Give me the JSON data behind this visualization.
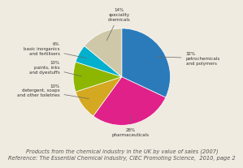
{
  "slices": [
    {
      "label": "32%\npetrochemicals\nand polymers",
      "pct": 32,
      "color": "#2b7bba"
    },
    {
      "label": "28%\npharmaceuticals",
      "pct": 28,
      "color": "#e0218a"
    },
    {
      "label": "10%\ndetergent, soaps\nand other toiletries",
      "pct": 10,
      "color": "#d4a820"
    },
    {
      "label": "10%\npaints, inks\nand dyestuffs",
      "pct": 10,
      "color": "#8db600"
    },
    {
      "label": "6%\nbasic inorganics\nand fertilisers",
      "pct": 6,
      "color": "#00b0cc"
    },
    {
      "label": "14%\nspeciality\nchemicals",
      "pct": 14,
      "color": "#cfc8a8"
    }
  ],
  "title_line1": "Products from the chemical industry in the UK by value of sales (2007)",
  "title_line2": "Reference: The Essential Chemical Industry, CIEC Promoting Science,  2010, page 2",
  "title_fontsize": 4.8,
  "background_color": "#f0ebe0",
  "startangle": 90
}
